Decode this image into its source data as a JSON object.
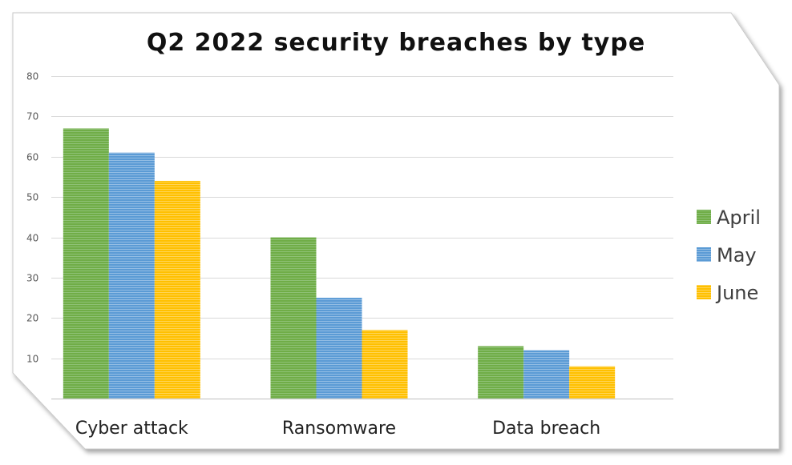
{
  "chart_data": {
    "type": "bar",
    "title": "Q2 2022 security breaches by type",
    "xlabel": "",
    "ylabel": "",
    "categories": [
      "Cyber attack",
      "Ransomware",
      "Data breach"
    ],
    "series": [
      {
        "name": "April",
        "values": [
          67,
          40,
          13
        ],
        "color": "#70ad47"
      },
      {
        "name": "May",
        "values": [
          61,
          25,
          12
        ],
        "color": "#5b9bd5"
      },
      {
        "name": "June",
        "values": [
          54,
          17,
          8
        ],
        "color": "#ffc000"
      }
    ],
    "y_ticks": [
      "10",
      "20",
      "30",
      "40",
      "50",
      "60",
      "70",
      "80"
    ],
    "ylim": [
      0,
      80
    ],
    "grid": true,
    "legend_position": "right"
  }
}
